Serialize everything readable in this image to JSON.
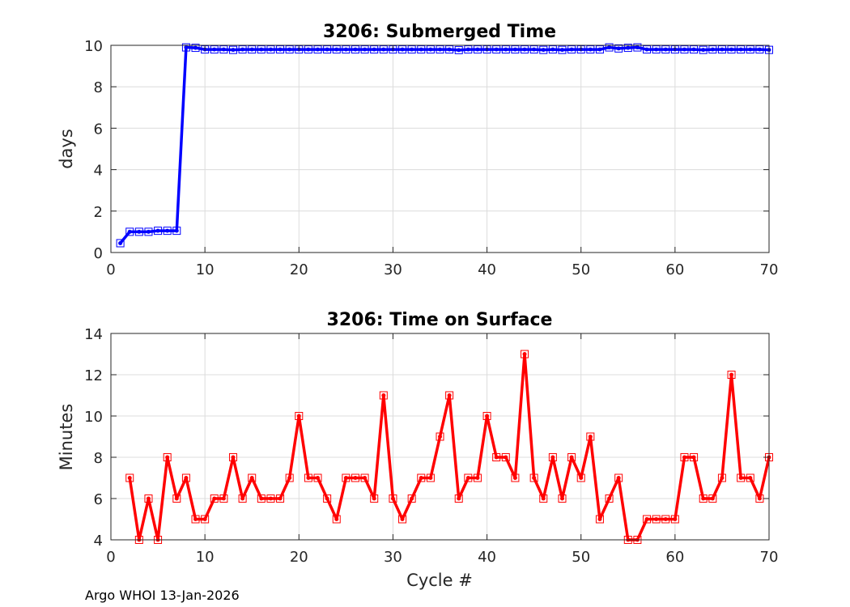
{
  "credit": "Argo WHOI 13-Jan-2026",
  "chart_data": [
    {
      "type": "line",
      "title": "3206: Submerged Time",
      "xlabel": "",
      "ylabel": "days",
      "xlim": [
        0,
        70
      ],
      "ylim": [
        0,
        10
      ],
      "xticks": [
        "0",
        "10",
        "20",
        "30",
        "40",
        "50",
        "60",
        "70"
      ],
      "yticks": [
        "0",
        "2",
        "4",
        "6",
        "8",
        "10"
      ],
      "grid": true,
      "color": "#0000ff",
      "marker": "square",
      "x": [
        1,
        2,
        3,
        4,
        5,
        6,
        7,
        8,
        9,
        10,
        11,
        12,
        13,
        14,
        15,
        16,
        17,
        18,
        19,
        20,
        21,
        22,
        23,
        24,
        25,
        26,
        27,
        28,
        29,
        30,
        31,
        32,
        33,
        34,
        35,
        36,
        37,
        38,
        39,
        40,
        41,
        42,
        43,
        44,
        45,
        46,
        47,
        48,
        49,
        50,
        51,
        52,
        53,
        54,
        55,
        56,
        57,
        58,
        59,
        60,
        61,
        62,
        63,
        64,
        65,
        66,
        67,
        68,
        69,
        70
      ],
      "y": [
        0.45,
        1.0,
        1.0,
        1.0,
        1.05,
        1.05,
        1.05,
        9.9,
        9.88,
        9.8,
        9.8,
        9.8,
        9.78,
        9.8,
        9.8,
        9.8,
        9.8,
        9.8,
        9.8,
        9.8,
        9.8,
        9.8,
        9.8,
        9.8,
        9.8,
        9.8,
        9.8,
        9.8,
        9.8,
        9.8,
        9.8,
        9.8,
        9.8,
        9.8,
        9.8,
        9.8,
        9.77,
        9.8,
        9.8,
        9.8,
        9.8,
        9.8,
        9.8,
        9.8,
        9.8,
        9.78,
        9.8,
        9.78,
        9.8,
        9.8,
        9.8,
        9.8,
        9.9,
        9.85,
        9.88,
        9.9,
        9.8,
        9.8,
        9.8,
        9.8,
        9.8,
        9.8,
        9.78,
        9.8,
        9.8,
        9.8,
        9.8,
        9.8,
        9.8,
        9.78
      ]
    },
    {
      "type": "line",
      "title": "3206: Time on Surface",
      "xlabel": "Cycle #",
      "ylabel": "Minutes",
      "xlim": [
        0,
        70
      ],
      "ylim": [
        4,
        14
      ],
      "xticks": [
        "0",
        "10",
        "20",
        "30",
        "40",
        "50",
        "60",
        "70"
      ],
      "yticks": [
        "4",
        "6",
        "8",
        "10",
        "12",
        "14"
      ],
      "grid": true,
      "color": "#ff0000",
      "marker": "square",
      "x": [
        2,
        3,
        4,
        5,
        6,
        7,
        8,
        9,
        10,
        11,
        12,
        13,
        14,
        15,
        16,
        17,
        18,
        19,
        20,
        21,
        22,
        23,
        24,
        25,
        26,
        27,
        28,
        29,
        30,
        31,
        32,
        33,
        34,
        35,
        36,
        37,
        38,
        39,
        40,
        41,
        42,
        43,
        44,
        45,
        46,
        47,
        48,
        49,
        50,
        51,
        52,
        53,
        54,
        55,
        56,
        57,
        58,
        59,
        60,
        61,
        62,
        63,
        64,
        65,
        66,
        67,
        68,
        69,
        70
      ],
      "y": [
        7,
        4,
        6,
        4,
        8,
        6,
        7,
        5,
        5,
        6,
        6,
        8,
        6,
        7,
        6,
        6,
        6,
        7,
        10,
        7,
        7,
        6,
        5,
        7,
        7,
        7,
        6,
        11,
        6,
        5,
        6,
        7,
        7,
        9,
        11,
        6,
        7,
        7,
        10,
        8,
        8,
        7,
        13,
        7,
        6,
        8,
        6,
        8,
        7,
        9,
        5,
        6,
        7,
        4,
        4,
        5,
        5,
        5,
        5,
        8,
        8,
        6,
        6,
        7,
        12,
        7,
        7,
        6,
        8
      ]
    }
  ]
}
